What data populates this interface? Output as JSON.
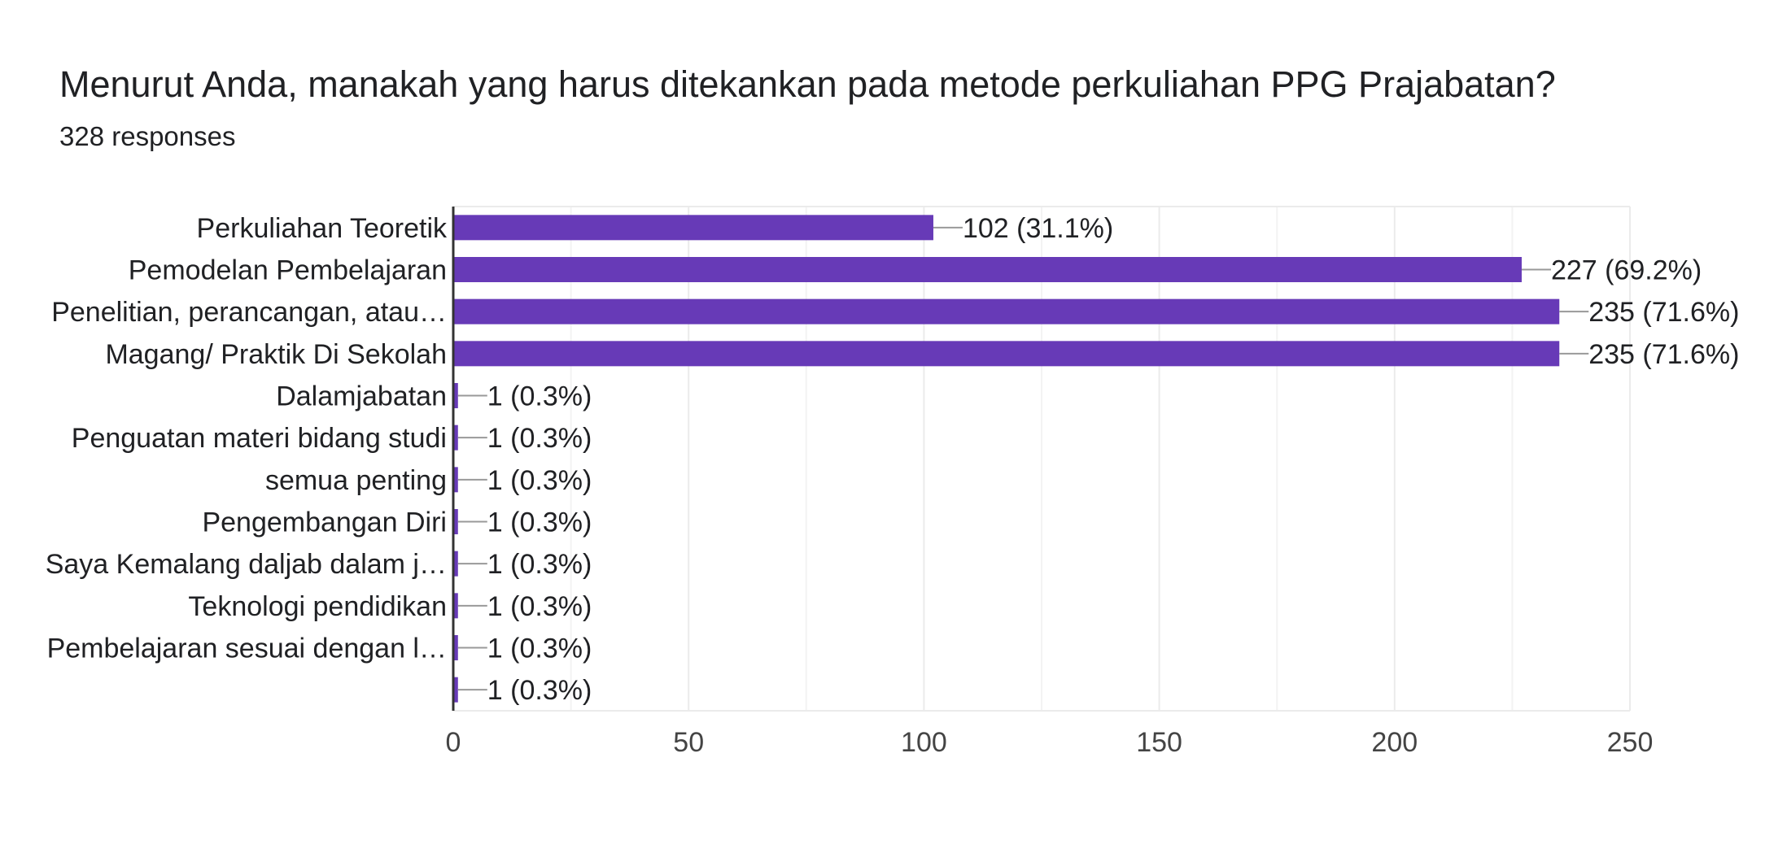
{
  "header": {
    "question": "Menurut Anda, manakah yang harus ditekankan pada metode perkuliahan PPG Prajabatan?",
    "responses": "328 responses"
  },
  "colors": {
    "bar": "#673ab7",
    "grid": "#ebebeb",
    "axis": "#333333",
    "connector": "#999999",
    "label_text": "#202124",
    "tick_text": "#444444"
  },
  "chart_data": {
    "type": "bar",
    "orientation": "horizontal",
    "categories": [
      "Perkuliahan Teoretik",
      "Pemodelan Pembelajaran",
      "Penelitian, perancangan, atau…",
      "Magang/ Praktik Di Sekolah",
      "Dalamjabatan",
      "Penguatan materi bidang studi",
      "semua penting",
      "Pengembangan Diri",
      "Saya Kemalang daljab dalam j…",
      "Teknologi pendidikan",
      "Pembelajaran sesuai dengan l…",
      ""
    ],
    "values": [
      102,
      227,
      235,
      235,
      1,
      1,
      1,
      1,
      1,
      1,
      1,
      1
    ],
    "data_labels": [
      "102 (31.1%)",
      "227 (69.2%)",
      "235 (71.6%)",
      "235 (71.6%)",
      "1 (0.3%)",
      "1 (0.3%)",
      "1 (0.3%)",
      "1 (0.3%)",
      "1 (0.3%)",
      "1 (0.3%)",
      "1 (0.3%)",
      "1 (0.3%)"
    ],
    "xlim": [
      0,
      250
    ],
    "xticks": [
      0,
      50,
      100,
      150,
      200,
      250
    ],
    "minor_grid_step": 25,
    "grid": true,
    "title": "",
    "xlabel": "",
    "ylabel": ""
  }
}
